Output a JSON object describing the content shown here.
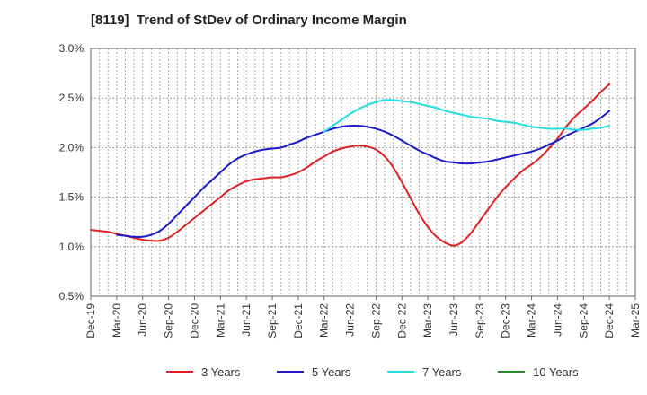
{
  "chart_data": {
    "type": "line",
    "title": "[8119]  Trend of StDev of Ordinary Income Margin",
    "xlabel": "",
    "ylabel": "",
    "x_ticks": [
      "Dec-19",
      "Mar-20",
      "Jun-20",
      "Sep-20",
      "Dec-20",
      "Mar-21",
      "Jun-21",
      "Sep-21",
      "Dec-21",
      "Mar-22",
      "Jun-22",
      "Sep-22",
      "Dec-22",
      "Mar-23",
      "Jun-23",
      "Sep-23",
      "Dec-23",
      "Mar-24",
      "Jun-24",
      "Sep-24",
      "Dec-24",
      "Mar-25"
    ],
    "y_ticks": [
      "0.5%",
      "1.0%",
      "1.5%",
      "2.0%",
      "2.5%",
      "3.0%"
    ],
    "ylim": [
      0.5,
      3.0
    ],
    "grid": true,
    "legend_position": "bottom",
    "series": [
      {
        "name": "3 Years",
        "color": "#e02020",
        "points": [
          [
            "Dec-19",
            1.17
          ],
          [
            "Jan-20",
            1.16
          ],
          [
            "Feb-20",
            1.15
          ],
          [
            "Mar-20",
            1.13
          ],
          [
            "Apr-20",
            1.11
          ],
          [
            "May-20",
            1.09
          ],
          [
            "Jun-20",
            1.07
          ],
          [
            "Jul-20",
            1.06
          ],
          [
            "Aug-20",
            1.06
          ],
          [
            "Sep-20",
            1.09
          ],
          [
            "Oct-20",
            1.15
          ],
          [
            "Nov-20",
            1.22
          ],
          [
            "Dec-20",
            1.29
          ],
          [
            "Jan-21",
            1.36
          ],
          [
            "Feb-21",
            1.43
          ],
          [
            "Mar-21",
            1.5
          ],
          [
            "Apr-21",
            1.57
          ],
          [
            "May-21",
            1.62
          ],
          [
            "Jun-21",
            1.66
          ],
          [
            "Jul-21",
            1.68
          ],
          [
            "Aug-21",
            1.69
          ],
          [
            "Sep-21",
            1.7
          ],
          [
            "Oct-21",
            1.7
          ],
          [
            "Nov-21",
            1.72
          ],
          [
            "Dec-21",
            1.75
          ],
          [
            "Jan-22",
            1.8
          ],
          [
            "Feb-22",
            1.86
          ],
          [
            "Mar-22",
            1.91
          ],
          [
            "Apr-22",
            1.96
          ],
          [
            "May-22",
            1.99
          ],
          [
            "Jun-22",
            2.01
          ],
          [
            "Jul-22",
            2.02
          ],
          [
            "Aug-22",
            2.01
          ],
          [
            "Sep-22",
            1.98
          ],
          [
            "Oct-22",
            1.91
          ],
          [
            "Nov-22",
            1.8
          ],
          [
            "Dec-22",
            1.65
          ],
          [
            "Jan-23",
            1.49
          ],
          [
            "Feb-23",
            1.33
          ],
          [
            "Mar-23",
            1.2
          ],
          [
            "Apr-23",
            1.1
          ],
          [
            "May-23",
            1.04
          ],
          [
            "Jun-23",
            1.01
          ],
          [
            "Jul-23",
            1.05
          ],
          [
            "Aug-23",
            1.14
          ],
          [
            "Sep-23",
            1.26
          ],
          [
            "Oct-23",
            1.38
          ],
          [
            "Nov-23",
            1.5
          ],
          [
            "Dec-23",
            1.6
          ],
          [
            "Jan-24",
            1.69
          ],
          [
            "Feb-24",
            1.77
          ],
          [
            "Mar-24",
            1.83
          ],
          [
            "Apr-24",
            1.9
          ],
          [
            "May-24",
            1.99
          ],
          [
            "Jun-24",
            2.09
          ],
          [
            "Jul-24",
            2.21
          ],
          [
            "Aug-24",
            2.31
          ],
          [
            "Sep-24",
            2.39
          ],
          [
            "Oct-24",
            2.47
          ],
          [
            "Nov-24",
            2.56
          ],
          [
            "Dec-24",
            2.64
          ]
        ]
      },
      {
        "name": "5 Years",
        "color": "#1a1acc",
        "points": [
          [
            "Mar-20",
            1.12
          ],
          [
            "Apr-20",
            1.11
          ],
          [
            "May-20",
            1.1
          ],
          [
            "Jun-20",
            1.1
          ],
          [
            "Jul-20",
            1.12
          ],
          [
            "Aug-20",
            1.16
          ],
          [
            "Sep-20",
            1.23
          ],
          [
            "Oct-20",
            1.32
          ],
          [
            "Nov-20",
            1.41
          ],
          [
            "Dec-20",
            1.5
          ],
          [
            "Jan-21",
            1.59
          ],
          [
            "Feb-21",
            1.67
          ],
          [
            "Mar-21",
            1.75
          ],
          [
            "Apr-21",
            1.83
          ],
          [
            "May-21",
            1.89
          ],
          [
            "Jun-21",
            1.93
          ],
          [
            "Jul-21",
            1.96
          ],
          [
            "Aug-21",
            1.98
          ],
          [
            "Sep-21",
            1.99
          ],
          [
            "Oct-21",
            2.0
          ],
          [
            "Nov-21",
            2.03
          ],
          [
            "Dec-21",
            2.06
          ],
          [
            "Jan-22",
            2.1
          ],
          [
            "Feb-22",
            2.13
          ],
          [
            "Mar-22",
            2.16
          ],
          [
            "Apr-22",
            2.19
          ],
          [
            "May-22",
            2.21
          ],
          [
            "Jun-22",
            2.22
          ],
          [
            "Jul-22",
            2.22
          ],
          [
            "Aug-22",
            2.21
          ],
          [
            "Sep-22",
            2.19
          ],
          [
            "Oct-22",
            2.16
          ],
          [
            "Nov-22",
            2.12
          ],
          [
            "Dec-22",
            2.07
          ],
          [
            "Jan-23",
            2.02
          ],
          [
            "Feb-23",
            1.97
          ],
          [
            "Mar-23",
            1.93
          ],
          [
            "Apr-23",
            1.89
          ],
          [
            "May-23",
            1.86
          ],
          [
            "Jun-23",
            1.85
          ],
          [
            "Jul-23",
            1.84
          ],
          [
            "Aug-23",
            1.84
          ],
          [
            "Sep-23",
            1.85
          ],
          [
            "Oct-23",
            1.86
          ],
          [
            "Nov-23",
            1.88
          ],
          [
            "Dec-23",
            1.9
          ],
          [
            "Jan-24",
            1.92
          ],
          [
            "Feb-24",
            1.94
          ],
          [
            "Mar-24",
            1.96
          ],
          [
            "Apr-24",
            1.99
          ],
          [
            "May-24",
            2.03
          ],
          [
            "Jun-24",
            2.07
          ],
          [
            "Jul-24",
            2.12
          ],
          [
            "Aug-24",
            2.16
          ],
          [
            "Sep-24",
            2.2
          ],
          [
            "Oct-24",
            2.24
          ],
          [
            "Nov-24",
            2.3
          ],
          [
            "Dec-24",
            2.37
          ]
        ]
      },
      {
        "name": "7 Years",
        "color": "#22e0e0",
        "points": [
          [
            "Mar-22",
            2.16
          ],
          [
            "Apr-22",
            2.22
          ],
          [
            "May-22",
            2.28
          ],
          [
            "Jun-22",
            2.34
          ],
          [
            "Jul-22",
            2.39
          ],
          [
            "Aug-22",
            2.43
          ],
          [
            "Sep-22",
            2.46
          ],
          [
            "Oct-22",
            2.48
          ],
          [
            "Nov-22",
            2.48
          ],
          [
            "Dec-22",
            2.47
          ],
          [
            "Jan-23",
            2.46
          ],
          [
            "Feb-23",
            2.44
          ],
          [
            "Mar-23",
            2.42
          ],
          [
            "Apr-23",
            2.4
          ],
          [
            "May-23",
            2.37
          ],
          [
            "Jun-23",
            2.35
          ],
          [
            "Jul-23",
            2.33
          ],
          [
            "Aug-23",
            2.31
          ],
          [
            "Sep-23",
            2.3
          ],
          [
            "Oct-23",
            2.29
          ],
          [
            "Nov-23",
            2.27
          ],
          [
            "Dec-23",
            2.26
          ],
          [
            "Jan-24",
            2.25
          ],
          [
            "Feb-24",
            2.23
          ],
          [
            "Mar-24",
            2.21
          ],
          [
            "Apr-24",
            2.2
          ],
          [
            "May-24",
            2.19
          ],
          [
            "Jun-24",
            2.19
          ],
          [
            "Jul-24",
            2.19
          ],
          [
            "Aug-24",
            2.18
          ],
          [
            "Sep-24",
            2.18
          ],
          [
            "Oct-24",
            2.19
          ],
          [
            "Nov-24",
            2.2
          ],
          [
            "Dec-24",
            2.22
          ]
        ]
      },
      {
        "name": "10 Years",
        "color": "#228b22",
        "points": []
      }
    ]
  }
}
